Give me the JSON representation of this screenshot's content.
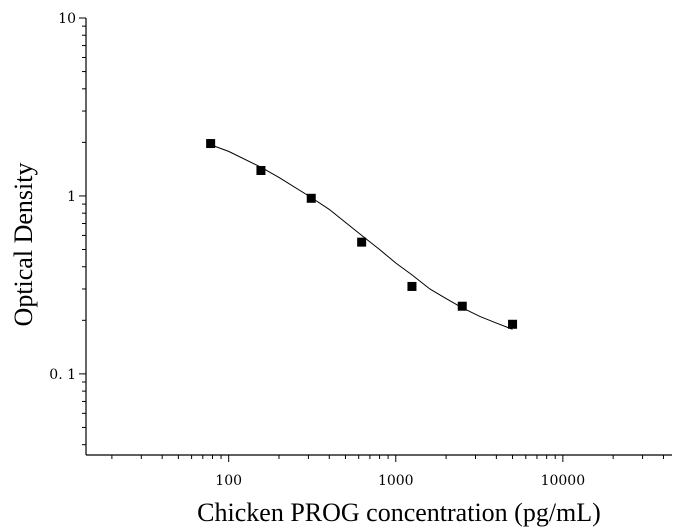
{
  "chart_data": {
    "type": "scatter",
    "title": "",
    "xlabel": "Chicken PROG concentration (pg/mL)",
    "ylabel": "Optical Density",
    "x_scale": "log",
    "y_scale": "log",
    "xlim": [
      14,
      45000
    ],
    "ylim": [
      0.035,
      10
    ],
    "x_ticks": [
      {
        "value": 100,
        "label": "100"
      },
      {
        "value": 1000,
        "label": "1000"
      },
      {
        "value": 10000,
        "label": "10000"
      }
    ],
    "y_ticks": [
      {
        "value": 10,
        "label": "10"
      },
      {
        "value": 1,
        "label": "1"
      },
      {
        "value": 0.1,
        "label": "0. 1"
      }
    ],
    "grid": false,
    "series": [
      {
        "marker": "square",
        "color": "#000000",
        "x": [
          78,
          156,
          312,
          625,
          1250,
          2500,
          5000
        ],
        "y": [
          1.97,
          1.39,
          0.97,
          0.55,
          0.31,
          0.24,
          0.19
        ]
      }
    ],
    "fit_curve": {
      "type": "4PL",
      "color": "#000000",
      "x": [
        78,
        100,
        156,
        200,
        312,
        400,
        625,
        800,
        1000,
        1250,
        1600,
        2000,
        2500,
        3200,
        4000,
        5000
      ],
      "y": [
        1.94,
        1.78,
        1.45,
        1.27,
        0.98,
        0.84,
        0.6,
        0.5,
        0.42,
        0.36,
        0.3,
        0.265,
        0.235,
        0.21,
        0.193,
        0.178
      ]
    }
  }
}
